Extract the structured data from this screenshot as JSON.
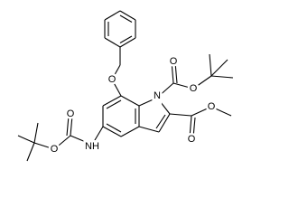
{
  "molecule": {
    "labels": [
      "O",
      "N",
      "O",
      "O",
      "O",
      "O",
      "NH",
      "O",
      "O"
    ]
  }
}
